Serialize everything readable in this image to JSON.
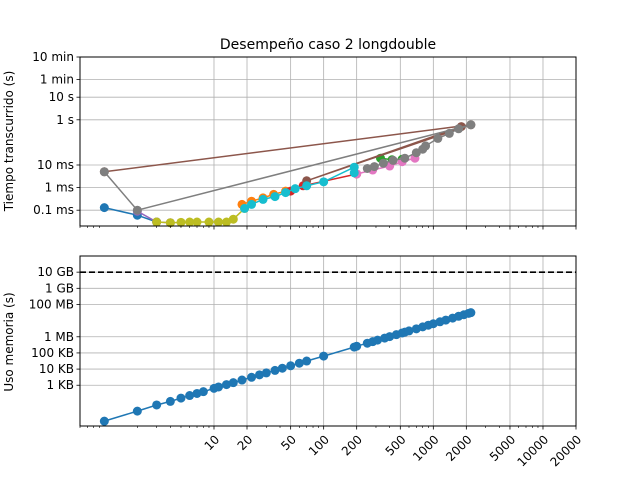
{
  "chart_data": [
    {
      "type": "line",
      "title": "Desempeño caso 2 longdouble",
      "xlabel": "",
      "ylabel": "Tiempo transcurrido (s)",
      "x_scale": "log",
      "y_scale": "log",
      "xlim": [
        0.6,
        20000
      ],
      "ylim": [
        2e-05,
        600
      ],
      "grid": true,
      "ytick_values": [
        0.0001,
        0.001,
        0.01,
        1,
        10,
        60,
        600
      ],
      "ytick_labels": [
        "0.1 ms",
        "1 ms",
        "10 ms",
        "1 s",
        "10 s",
        "1 min",
        "10 min"
      ],
      "series": [
        {
          "color": "#1f77b4",
          "points": [
            [
              1,
              0.00013
            ],
            [
              2,
              6e-05
            ],
            [
              3,
              3e-05
            ]
          ]
        },
        {
          "color": "#ff7f0e",
          "points": [
            [
              18,
              0.00018
            ],
            [
              22,
              0.00025
            ],
            [
              28,
              0.00035
            ],
            [
              35,
              0.0005
            ],
            [
              45,
              0.0007
            ]
          ]
        },
        {
          "color": "#2ca02c",
          "points": [
            [
              330,
              0.02
            ],
            [
              420,
              0.017
            ],
            [
              520,
              0.018
            ]
          ]
        },
        {
          "color": "#d62728",
          "points": [
            [
              50,
              0.0007
            ],
            [
              65,
              0.0012
            ],
            [
              200,
              0.004
            ]
          ]
        },
        {
          "color": "#9467bd",
          "points": [
            [
              2,
              9e-05
            ],
            [
              3,
              3e-05
            ],
            [
              4,
              2.8e-05
            ]
          ]
        },
        {
          "color": "#8c564b",
          "points": [
            [
              1,
              0.005
            ],
            [
              2200,
              0.6
            ],
            [
              70,
              0.002
            ],
            [
              1800,
              0.5
            ]
          ]
        },
        {
          "color": "#e377c2",
          "points": [
            [
              200,
              0.004
            ],
            [
              280,
              0.006
            ],
            [
              400,
              0.009
            ],
            [
              520,
              0.014
            ],
            [
              680,
              0.02
            ]
          ]
        },
        {
          "color": "#7f7f7f",
          "points": [
            [
              1,
              0.005
            ],
            [
              2,
              0.0001
            ],
            [
              2200,
              0.6
            ],
            [
              1700,
              0.4
            ],
            [
              1400,
              0.25
            ],
            [
              1100,
              0.15
            ],
            [
              850,
              0.07
            ],
            [
              800,
              0.05
            ],
            [
              700,
              0.035
            ],
            [
              550,
              0.02
            ],
            [
              430,
              0.016
            ],
            [
              350,
              0.012
            ],
            [
              290,
              0.0085
            ],
            [
              250,
              0.007
            ]
          ]
        },
        {
          "color": "#bcbd22",
          "points": [
            [
              3,
              3e-05
            ],
            [
              4,
              2.8e-05
            ],
            [
              5,
              2.9e-05
            ],
            [
              6,
              3e-05
            ],
            [
              7,
              3e-05
            ],
            [
              9,
              3e-05
            ],
            [
              11,
              3e-05
            ],
            [
              13,
              3e-05
            ],
            [
              15,
              4e-05
            ],
            [
              19,
              0.00012
            ]
          ]
        },
        {
          "color": "#17becf",
          "points": [
            [
              19,
              0.00012
            ],
            [
              22,
              0.00018
            ],
            [
              28,
              0.0003
            ],
            [
              36,
              0.0004
            ],
            [
              45,
              0.0006
            ],
            [
              55,
              0.0009
            ],
            [
              70,
              0.0012
            ],
            [
              100,
              0.0018
            ],
            [
              190,
              0.008
            ],
            [
              190,
              0.0045
            ]
          ]
        }
      ]
    },
    {
      "type": "line",
      "xlabel": "",
      "ylabel": "Uso memoria (s)",
      "x_scale": "log",
      "y_scale": "log",
      "xlim": [
        0.6,
        20000
      ],
      "ylim": [
        3,
        100000000000
      ],
      "grid": true,
      "xtick_values": [
        10,
        20,
        50,
        100,
        200,
        500,
        1000,
        2000,
        5000,
        10000,
        20000
      ],
      "xtick_labels": [
        "10",
        "20",
        "50",
        "100",
        "200",
        "500",
        "1000",
        "2000",
        "5000",
        "10000",
        "20000"
      ],
      "ytick_values": [
        1000,
        10000,
        100000,
        1000000,
        100000000,
        1000000000,
        10000000000
      ],
      "ytick_labels": [
        "1 KB",
        "10 KB",
        "100 KB",
        "1 MB",
        "100 MB",
        "1 GB",
        "10 GB"
      ],
      "hline": {
        "value": 10000000000,
        "color": "#000000",
        "style": "dashed"
      },
      "series": [
        {
          "color": "#1f77b4",
          "points": [
            [
              1,
              6
            ],
            [
              2,
              25
            ],
            [
              3,
              60
            ],
            [
              4,
              100
            ],
            [
              5,
              160
            ],
            [
              6,
              230
            ],
            [
              7,
              310
            ],
            [
              8,
              400
            ],
            [
              10,
              640
            ],
            [
              11,
              780
            ],
            [
              13,
              1100
            ],
            [
              15,
              1450
            ],
            [
              18,
              2100
            ],
            [
              22,
              3100
            ],
            [
              26,
              4400
            ],
            [
              30,
              5800
            ],
            [
              36,
              8300
            ],
            [
              42,
              11300
            ],
            [
              50,
              16000
            ],
            [
              60,
              23000
            ],
            [
              70,
              31500
            ],
            [
              100,
              64000
            ],
            [
              190,
              230000
            ],
            [
              200,
              260000
            ],
            [
              250,
              400000
            ],
            [
              280,
              500000
            ],
            [
              310,
              620000
            ],
            [
              360,
              830000
            ],
            [
              400,
              1030000
            ],
            [
              460,
              1350000
            ],
            [
              520,
              1720000
            ],
            [
              550,
              1930000
            ],
            [
              600,
              2300000
            ],
            [
              700,
              3100000
            ],
            [
              800,
              4100000
            ],
            [
              900,
              5200000
            ],
            [
              1000,
              6400000
            ],
            [
              1150,
              8500000
            ],
            [
              1300,
              10800000
            ],
            [
              1500,
              14400000
            ],
            [
              1700,
              18500000
            ],
            [
              1900,
              23100000
            ],
            [
              2100,
              28200000
            ],
            [
              2200,
              31000000
            ]
          ]
        }
      ]
    }
  ]
}
